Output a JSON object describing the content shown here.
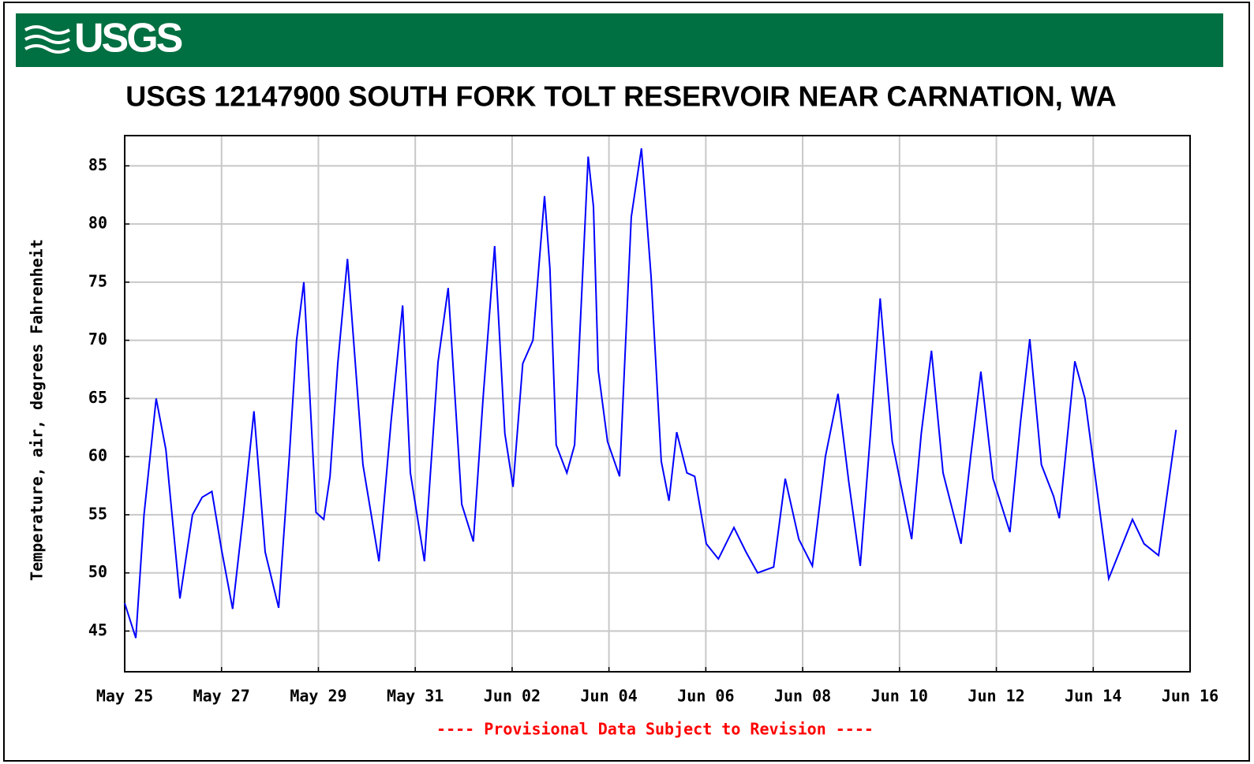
{
  "header": {
    "logo": "USGS"
  },
  "chart_data": {
    "type": "line",
    "title": "USGS 12147900 SOUTH FORK TOLT RESERVOIR NEAR CARNATION, WA",
    "ylabel": "Temperature, air, degrees Fahrenheit",
    "footnote": "---- Provisional Data Subject to Revision ----",
    "color": "#0000ff",
    "grid": true,
    "xlim": [
      0,
      22
    ],
    "ylim": [
      41.5,
      87.6
    ],
    "yticks": [
      45,
      50,
      55,
      60,
      65,
      70,
      75,
      80,
      85
    ],
    "xticks": [
      {
        "value": 0,
        "label": "May 25"
      },
      {
        "value": 2,
        "label": "May 27"
      },
      {
        "value": 4,
        "label": "May 29"
      },
      {
        "value": 6,
        "label": "May 31"
      },
      {
        "value": 8,
        "label": "Jun 02"
      },
      {
        "value": 10,
        "label": "Jun 04"
      },
      {
        "value": 12,
        "label": "Jun 06"
      },
      {
        "value": 14,
        "label": "Jun 08"
      },
      {
        "value": 16,
        "label": "Jun 10"
      },
      {
        "value": 18,
        "label": "Jun 12"
      },
      {
        "value": 20,
        "label": "Jun 14"
      },
      {
        "value": 22,
        "label": "Jun 16"
      }
    ],
    "x": [
      0,
      0.23,
      0.4,
      0.65,
      0.85,
      1.14,
      1.4,
      1.6,
      1.8,
      2.0,
      2.23,
      2.45,
      2.67,
      2.9,
      3.18,
      3.4,
      3.55,
      3.7,
      3.95,
      4.11,
      4.24,
      4.4,
      4.6,
      4.92,
      5.25,
      5.5,
      5.74,
      5.9,
      6.19,
      6.47,
      6.68,
      6.96,
      7.2,
      7.4,
      7.64,
      7.85,
      8.02,
      8.22,
      8.43,
      8.67,
      8.78,
      8.91,
      9.13,
      9.29,
      9.57,
      9.68,
      9.78,
      9.97,
      10.22,
      10.46,
      10.67,
      10.87,
      11.08,
      11.24,
      11.4,
      11.61,
      11.77,
      12.01,
      12.26,
      12.58,
      12.83,
      13.07,
      13.4,
      13.64,
      13.92,
      14.2,
      14.47,
      14.73,
      14.95,
      15.19,
      15.4,
      15.6,
      15.85,
      16.25,
      16.45,
      16.66,
      16.9,
      17.27,
      17.47,
      17.68,
      17.93,
      18.28,
      18.5,
      18.69,
      18.93,
      19.18,
      19.3,
      19.62,
      19.83,
      20.32,
      20.81,
      21.05,
      21.35,
      21.71
    ],
    "values": [
      47.4,
      44.4,
      55,
      65,
      60.6,
      47.8,
      55,
      56.5,
      57,
      52,
      46.9,
      55,
      63.9,
      51.8,
      47,
      60,
      70,
      75,
      55.2,
      54.6,
      58.3,
      68,
      77,
      59.3,
      51,
      63,
      73,
      58.6,
      51,
      68.1,
      74.5,
      55.9,
      52.7,
      65,
      78.1,
      62,
      57.4,
      68,
      70,
      82.4,
      76.2,
      61,
      58.6,
      61,
      85.8,
      81.5,
      67.4,
      61.3,
      58.3,
      80.6,
      86.5,
      75.5,
      59.6,
      56.2,
      62.1,
      58.6,
      58.3,
      52.5,
      51.2,
      53.9,
      51.8,
      50,
      50.5,
      58.1,
      52.9,
      50.6,
      60,
      65.4,
      57.9,
      50.6,
      62,
      73.6,
      61.3,
      52.9,
      62,
      69.1,
      58.6,
      52.5,
      60,
      67.3,
      58.1,
      53.5,
      63,
      70.1,
      59.3,
      56.6,
      54.7,
      68.2,
      65,
      49.5,
      54.6,
      52.5,
      51.5,
      62.3
    ]
  }
}
